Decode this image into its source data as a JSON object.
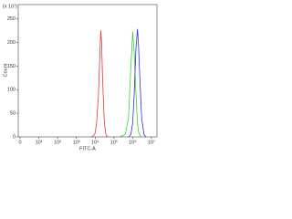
{
  "chart_data": {
    "type": "line",
    "xlabel": "FITC-A",
    "ylabel": "Count",
    "y_multiplier": "(x 10¹)",
    "x": [
      6000,
      8000,
      10000,
      12000,
      15000,
      18000,
      20000,
      22000,
      25000,
      30000,
      35000,
      40000,
      50000,
      100000,
      200000,
      400000,
      600000,
      800000,
      1000000,
      1200000,
      1500000,
      1800000,
      2000000,
      2500000,
      3000000,
      4000000,
      5000000
    ],
    "series": [
      {
        "color": "#e8353a",
        "values": [
          0,
          2,
          8,
          30,
          90,
          180,
          225,
          200,
          120,
          40,
          10,
          2,
          0,
          null,
          null,
          null,
          null,
          null,
          null,
          null,
          null,
          null,
          null,
          null,
          null,
          null,
          null
        ]
      },
      {
        "color": "#3ccf3c",
        "values": [
          null,
          null,
          null,
          null,
          null,
          null,
          null,
          null,
          null,
          null,
          null,
          null,
          null,
          null,
          0,
          5,
          40,
          150,
          222,
          180,
          90,
          30,
          12,
          2,
          0,
          null,
          null
        ]
      },
      {
        "color": "#3030d8",
        "values": [
          null,
          null,
          null,
          null,
          null,
          null,
          null,
          null,
          null,
          null,
          null,
          null,
          null,
          null,
          null,
          null,
          0,
          5,
          30,
          90,
          190,
          228,
          200,
          110,
          40,
          5,
          0
        ]
      }
    ],
    "xscale": "log",
    "xlim": [
      1,
      10000000
    ],
    "xticks": [
      {
        "value": 1,
        "label": "0"
      },
      {
        "value": 10,
        "label": "10¹"
      },
      {
        "value": 100,
        "label": "10²"
      },
      {
        "value": 1000,
        "label": "10³"
      },
      {
        "value": 10000,
        "label": "10⁴"
      },
      {
        "value": 100000,
        "label": "10⁵"
      },
      {
        "value": 1000000,
        "label": "10⁶"
      },
      {
        "value": 10000000,
        "label": "10⁷"
      }
    ],
    "ylim": [
      0,
      280
    ],
    "yticks": [
      0,
      50,
      100,
      150,
      200,
      250
    ]
  }
}
